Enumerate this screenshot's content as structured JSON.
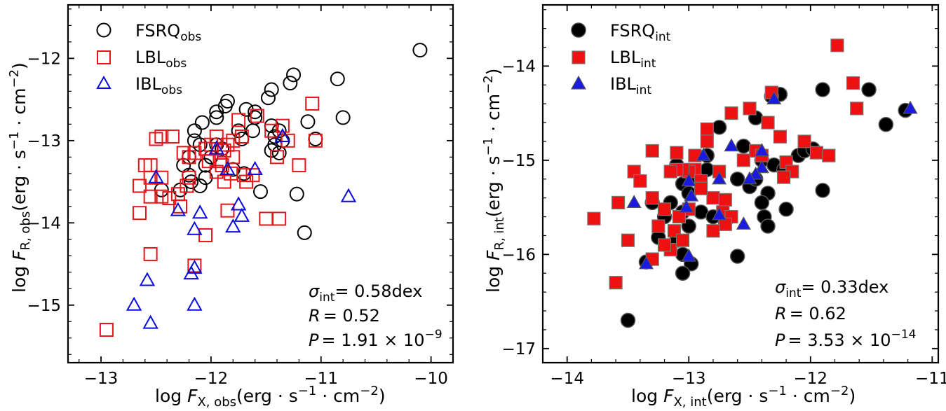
{
  "chart_data": [
    {
      "type": "scatter",
      "xlabel": "log F_X,obs(erg · s^-1 · cm^-2)",
      "ylabel": "log F_R,obs(erg · s^-1 · cm^-2)",
      "xlim": [
        -13.3,
        -9.8
      ],
      "ylim": [
        -15.7,
        -11.35
      ],
      "xticks": [
        -13,
        -12,
        -11,
        -10
      ],
      "yticks": [
        -15,
        -14,
        -13,
        -12
      ],
      "xtick_labels": [
        "−13",
        "−12",
        "−11",
        "−10"
      ],
      "ytick_labels": [
        "−15",
        "−14",
        "−13",
        "−12"
      ],
      "legend_position": "top-left",
      "legend": [
        {
          "base": "FSRQ",
          "sub": "obs"
        },
        {
          "base": "LBL",
          "sub": "obs"
        },
        {
          "base": "IBL",
          "sub": "obs"
        }
      ],
      "stats": {
        "sigma_value": "= 0.58dex",
        "r_value": "= 0.52",
        "p_value": "= 1.91 × 10",
        "p_exp": "−9"
      },
      "series": [
        {
          "name": "FSRQ_obs",
          "marker": "circle",
          "filled": false,
          "color": "#000000",
          "points": [
            [
              -10.1,
              -11.9
            ],
            [
              -10.85,
              -12.25
            ],
            [
              -10.8,
              -12.72
            ],
            [
              -11.25,
              -12.2
            ],
            [
              -11.28,
              -12.3
            ],
            [
              -11.45,
              -12.38
            ],
            [
              -11.48,
              -12.48
            ],
            [
              -11.6,
              -12.65
            ],
            [
              -11.68,
              -12.62
            ],
            [
              -11.6,
              -12.72
            ],
            [
              -11.85,
              -12.52
            ],
            [
              -11.87,
              -12.58
            ],
            [
              -11.95,
              -12.65
            ],
            [
              -11.95,
              -12.72
            ],
            [
              -12.08,
              -12.78
            ],
            [
              -12.15,
              -12.88
            ],
            [
              -11.75,
              -12.88
            ],
            [
              -11.72,
              -12.98
            ],
            [
              -11.62,
              -12.88
            ],
            [
              -11.45,
              -12.82
            ],
            [
              -11.38,
              -12.88
            ],
            [
              -11.12,
              -12.77
            ],
            [
              -11.05,
              -12.98
            ],
            [
              -11.42,
              -12.95
            ],
            [
              -11.35,
              -13.0
            ],
            [
              -11.42,
              -13.05
            ],
            [
              -11.38,
              -13.15
            ],
            [
              -11.45,
              -13.12
            ],
            [
              -11.9,
              -13.1
            ],
            [
              -11.95,
              -13.05
            ],
            [
              -12.0,
              -13.2
            ],
            [
              -12.1,
              -13.05
            ],
            [
              -12.05,
              -13.3
            ],
            [
              -12.15,
              -13.0
            ],
            [
              -12.2,
              -13.2
            ],
            [
              -12.25,
              -13.3
            ],
            [
              -12.2,
              -13.42
            ],
            [
              -12.05,
              -13.45
            ],
            [
              -12.18,
              -13.5
            ],
            [
              -12.1,
              -13.55
            ],
            [
              -12.28,
              -13.6
            ],
            [
              -12.45,
              -13.6
            ],
            [
              -11.8,
              -13.35
            ],
            [
              -11.7,
              -13.4
            ],
            [
              -11.55,
              -13.62
            ],
            [
              -11.22,
              -13.65
            ],
            [
              -11.15,
              -14.12
            ]
          ]
        },
        {
          "name": "LBL_obs",
          "marker": "square",
          "filled": false,
          "color": "#e8141a",
          "points": [
            [
              -11.08,
              -12.55
            ],
            [
              -11.35,
              -12.82
            ],
            [
              -11.45,
              -12.88
            ],
            [
              -11.58,
              -12.7
            ],
            [
              -11.75,
              -12.75
            ],
            [
              -11.72,
              -12.95
            ],
            [
              -11.8,
              -13.0
            ],
            [
              -11.95,
              -12.95
            ],
            [
              -12.0,
              -13.05
            ],
            [
              -12.05,
              -13.1
            ],
            [
              -12.15,
              -13.15
            ],
            [
              -12.2,
              -13.2
            ],
            [
              -12.25,
              -13.15
            ],
            [
              -12.35,
              -12.95
            ],
            [
              -12.45,
              -12.95
            ],
            [
              -12.5,
              -12.98
            ],
            [
              -11.85,
              -13.05
            ],
            [
              -11.88,
              -13.12
            ],
            [
              -11.8,
              -13.2
            ],
            [
              -11.9,
              -13.3
            ],
            [
              -11.82,
              -13.4
            ],
            [
              -11.7,
              -13.42
            ],
            [
              -11.62,
              -13.42
            ],
            [
              -11.68,
              -13.5
            ],
            [
              -11.88,
              -13.5
            ],
            [
              -11.95,
              -13.38
            ],
            [
              -11.92,
              -13.25
            ],
            [
              -12.02,
              -13.25
            ],
            [
              -11.4,
              -13.2
            ],
            [
              -11.2,
              -13.3
            ],
            [
              -11.05,
              -13.0
            ],
            [
              -11.3,
              -13.0
            ],
            [
              -12.2,
              -13.45
            ],
            [
              -12.22,
              -13.55
            ],
            [
              -12.3,
              -13.65
            ],
            [
              -12.38,
              -13.7
            ],
            [
              -12.45,
              -13.68
            ],
            [
              -12.55,
              -13.68
            ],
            [
              -12.55,
              -13.45
            ],
            [
              -12.45,
              -13.45
            ],
            [
              -12.6,
              -13.3
            ],
            [
              -12.55,
              -13.3
            ],
            [
              -12.65,
              -13.55
            ],
            [
              -12.65,
              -13.88
            ],
            [
              -12.28,
              -13.8
            ],
            [
              -12.05,
              -14.15
            ],
            [
              -11.85,
              -13.85
            ],
            [
              -11.5,
              -13.95
            ],
            [
              -11.38,
              -13.95
            ],
            [
              -12.15,
              -14.52
            ],
            [
              -12.55,
              -14.38
            ],
            [
              -12.95,
              -15.3
            ]
          ]
        },
        {
          "name": "IBL_obs",
          "marker": "triangle",
          "filled": false,
          "color": "#0a0adc",
          "points": [
            [
              -12.5,
              -13.45
            ],
            [
              -12.3,
              -13.85
            ],
            [
              -12.1,
              -13.88
            ],
            [
              -12.15,
              -14.08
            ],
            [
              -11.95,
              -13.1
            ],
            [
              -11.85,
              -13.35
            ],
            [
              -11.6,
              -13.35
            ],
            [
              -11.75,
              -13.78
            ],
            [
              -11.72,
              -13.92
            ],
            [
              -11.8,
              -14.05
            ],
            [
              -11.35,
              -12.95
            ],
            [
              -10.75,
              -13.68
            ],
            [
              -12.15,
              -14.55
            ],
            [
              -12.18,
              -14.62
            ],
            [
              -12.58,
              -14.7
            ],
            [
              -12.7,
              -15.0
            ],
            [
              -12.55,
              -15.22
            ],
            [
              -12.15,
              -15.0
            ]
          ]
        }
      ]
    },
    {
      "type": "scatter",
      "xlabel": "log F_X,int(erg · s^-1 · cm^-2)",
      "ylabel": "log F_R,int(erg · s^-1 · cm^-2)",
      "xlim": [
        -14.2,
        -10.95
      ],
      "ylim": [
        -17.15,
        -13.35
      ],
      "xticks": [
        -14,
        -13,
        -12,
        -11
      ],
      "yticks": [
        -17,
        -16,
        -15,
        -14
      ],
      "xtick_labels": [
        "−14",
        "−13",
        "−12",
        "−11"
      ],
      "ytick_labels": [
        "−17",
        "−16",
        "−15",
        "−14"
      ],
      "legend_position": "top-left",
      "legend": [
        {
          "base": "FSRQ",
          "sub": "int"
        },
        {
          "base": "LBL",
          "sub": "int"
        },
        {
          "base": "IBL",
          "sub": "int"
        }
      ],
      "stats": {
        "sigma_value": "= 0.33dex",
        "r_value": "= 0.62",
        "p_value": "= 3.53 × 10",
        "p_exp": "−14"
      },
      "series": [
        {
          "name": "FSRQ_int",
          "marker": "circle",
          "filled": true,
          "color": "#000000",
          "points": [
            [
              -11.22,
              -14.47
            ],
            [
              -11.38,
              -14.62
            ],
            [
              -11.52,
              -14.25
            ],
            [
              -11.9,
              -14.25
            ],
            [
              -12.25,
              -14.3
            ],
            [
              -12.32,
              -14.32
            ],
            [
              -12.45,
              -14.55
            ],
            [
              -12.75,
              -14.65
            ],
            [
              -12.85,
              -14.95
            ],
            [
              -12.55,
              -14.85
            ],
            [
              -12.4,
              -15.0
            ],
            [
              -12.3,
              -15.05
            ],
            [
              -12.22,
              -15.1
            ],
            [
              -12.1,
              -14.95
            ],
            [
              -12.05,
              -14.9
            ],
            [
              -11.98,
              -14.88
            ],
            [
              -12.6,
              -15.2
            ],
            [
              -12.5,
              -15.28
            ],
            [
              -12.35,
              -15.35
            ],
            [
              -12.45,
              -15.2
            ],
            [
              -12.85,
              -15.1
            ],
            [
              -12.95,
              -15.2
            ],
            [
              -13.05,
              -15.25
            ],
            [
              -13.1,
              -15.05
            ],
            [
              -13.0,
              -15.35
            ],
            [
              -13.15,
              -15.45
            ],
            [
              -13.2,
              -15.6
            ],
            [
              -13.05,
              -15.55
            ],
            [
              -13.0,
              -15.7
            ],
            [
              -12.9,
              -15.55
            ],
            [
              -12.8,
              -15.6
            ],
            [
              -12.7,
              -15.65
            ],
            [
              -12.4,
              -15.45
            ],
            [
              -12.38,
              -15.6
            ],
            [
              -12.2,
              -15.52
            ],
            [
              -12.35,
              -15.7
            ],
            [
              -11.9,
              -15.32
            ],
            [
              -13.3,
              -15.45
            ],
            [
              -13.25,
              -15.82
            ],
            [
              -13.1,
              -15.85
            ],
            [
              -13.05,
              -16.0
            ],
            [
              -12.98,
              -16.1
            ],
            [
              -13.05,
              -16.2
            ],
            [
              -13.35,
              -16.08
            ],
            [
              -12.6,
              -16.02
            ],
            [
              -13.5,
              -16.7
            ]
          ]
        },
        {
          "name": "LBL_int",
          "marker": "square",
          "filled": true,
          "color": "#ee1111",
          "points": [
            [
              -11.78,
              -13.78
            ],
            [
              -11.65,
              -14.18
            ],
            [
              -11.62,
              -14.45
            ],
            [
              -12.32,
              -14.28
            ],
            [
              -12.5,
              -14.45
            ],
            [
              -12.65,
              -14.5
            ],
            [
              -12.35,
              -14.6
            ],
            [
              -12.25,
              -14.75
            ],
            [
              -12.85,
              -14.67
            ],
            [
              -12.85,
              -14.8
            ],
            [
              -12.05,
              -14.8
            ],
            [
              -12.45,
              -14.9
            ],
            [
              -12.4,
              -14.95
            ],
            [
              -12.55,
              -15.0
            ],
            [
              -12.2,
              -15.02
            ],
            [
              -12.15,
              -15.12
            ],
            [
              -12.22,
              -15.18
            ],
            [
              -11.95,
              -14.92
            ],
            [
              -11.85,
              -14.95
            ],
            [
              -12.75,
              -15.12
            ],
            [
              -12.95,
              -15.1
            ],
            [
              -13.0,
              -15.12
            ],
            [
              -13.05,
              -15.1
            ],
            [
              -13.1,
              -15.1
            ],
            [
              -13.15,
              -15.12
            ],
            [
              -12.9,
              -15.22
            ],
            [
              -12.8,
              -15.4
            ],
            [
              -12.7,
              -15.42
            ],
            [
              -12.72,
              -15.55
            ],
            [
              -12.65,
              -15.6
            ],
            [
              -12.7,
              -15.68
            ],
            [
              -12.8,
              -15.75
            ],
            [
              -12.9,
              -15.3
            ],
            [
              -13.0,
              -15.52
            ],
            [
              -13.08,
              -15.6
            ],
            [
              -13.12,
              -15.75
            ],
            [
              -13.2,
              -15.52
            ],
            [
              -13.25,
              -15.7
            ],
            [
              -13.15,
              -15.95
            ],
            [
              -13.2,
              -15.9
            ],
            [
              -13.05,
              -15.85
            ],
            [
              -13.3,
              -15.4
            ],
            [
              -13.3,
              -14.9
            ],
            [
              -13.1,
              -14.92
            ],
            [
              -12.95,
              -14.95
            ],
            [
              -13.45,
              -15.12
            ],
            [
              -13.4,
              -15.22
            ],
            [
              -13.58,
              -15.45
            ],
            [
              -13.78,
              -15.62
            ],
            [
              -13.5,
              -15.85
            ],
            [
              -13.3,
              -16.05
            ],
            [
              -13.6,
              -16.3
            ]
          ]
        },
        {
          "name": "IBL_int",
          "marker": "triangle",
          "filled": true,
          "color": "#1a1ae0",
          "points": [
            [
              -11.18,
              -14.45
            ],
            [
              -12.3,
              -14.35
            ],
            [
              -12.65,
              -14.85
            ],
            [
              -12.4,
              -14.9
            ],
            [
              -12.88,
              -14.95
            ],
            [
              -12.4,
              -15.08
            ],
            [
              -12.45,
              -15.15
            ],
            [
              -12.5,
              -15.2
            ],
            [
              -12.75,
              -15.2
            ],
            [
              -13.0,
              -15.22
            ],
            [
              -12.98,
              -15.38
            ],
            [
              -13.02,
              -15.5
            ],
            [
              -12.75,
              -15.58
            ],
            [
              -12.55,
              -15.68
            ],
            [
              -13.0,
              -16.02
            ],
            [
              -13.35,
              -16.1
            ],
            [
              -13.45,
              -15.45
            ]
          ]
        }
      ]
    }
  ]
}
